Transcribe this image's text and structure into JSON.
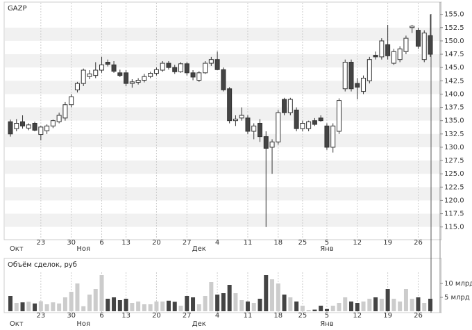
{
  "chart_data": {
    "type": "candlestick",
    "title": "GAZP",
    "categories": [
      null,
      null,
      null,
      null,
      null,
      "23",
      null,
      null,
      null,
      null,
      "30",
      null,
      null,
      null,
      null,
      "6",
      null,
      null,
      null,
      "13",
      null,
      null,
      null,
      null,
      "20",
      null,
      null,
      null,
      null,
      "27",
      null,
      null,
      null,
      null,
      "4",
      null,
      null,
      null,
      null,
      "11",
      null,
      null,
      null,
      null,
      "18",
      null,
      null,
      null,
      "25",
      null,
      null,
      null,
      "5",
      null,
      null,
      null,
      null,
      "12",
      null,
      null,
      null,
      null,
      "19",
      null,
      null,
      null,
      null,
      "26",
      null,
      null
    ],
    "months": [
      null,
      "Окт",
      null,
      null,
      null,
      null,
      null,
      null,
      null,
      null,
      null,
      null,
      "Ноя",
      null,
      null,
      null,
      null,
      null,
      null,
      null,
      null,
      null,
      null,
      null,
      null,
      null,
      null,
      null,
      null,
      null,
      null,
      "Дек",
      null,
      null,
      null,
      null,
      null,
      null,
      null,
      null,
      null,
      null,
      null,
      null,
      null,
      null,
      null,
      null,
      null,
      null,
      null,
      null,
      "Янв",
      null,
      null,
      null,
      null,
      null,
      null,
      null,
      null,
      null,
      null,
      null,
      null,
      null,
      null,
      null,
      null,
      null
    ],
    "open": [
      134.8,
      133.5,
      134.8,
      133.6,
      134.5,
      132.4,
      133.1,
      134,
      134.8,
      135.5,
      138,
      140.8,
      142,
      143.3,
      143.5,
      144.5,
      146,
      145.5,
      144,
      144,
      142,
      142.2,
      142.6,
      143.3,
      143.9,
      144.5,
      145.8,
      145,
      144.2,
      145.7,
      144,
      142.6,
      144,
      145.8,
      146.5,
      144.6,
      141,
      135,
      135.5,
      135.5,
      133,
      134.5,
      132,
      130,
      131,
      139,
      136.5,
      137,
      133.5,
      133.5,
      135,
      135.5,
      134,
      130,
      133,
      141,
      146,
      142,
      140.5,
      142.5,
      147.3,
      147,
      149.3,
      145.8,
      146.5,
      148,
      152.5,
      152,
      146.5,
      151
    ],
    "high": [
      135.2,
      135.3,
      136,
      134.5,
      134.8,
      134,
      134.3,
      135.2,
      136.5,
      138.5,
      140,
      142.3,
      144.8,
      144.5,
      146,
      147,
      146.5,
      146.2,
      144.6,
      144.5,
      142.8,
      143,
      143.8,
      144.2,
      145,
      146.2,
      146.2,
      145.5,
      146,
      146,
      144.5,
      144.3,
      146.2,
      147,
      148,
      145,
      141.3,
      136,
      137.5,
      136,
      134.5,
      135.3,
      133,
      131.5,
      137,
      139.3,
      139.3,
      137.5,
      135,
      135,
      135.5,
      136,
      134.5,
      134.5,
      139.2,
      146.5,
      146.5,
      143,
      143.5,
      147,
      148,
      150.5,
      153,
      148.5,
      149,
      151,
      153,
      152.5,
      152,
      155
    ],
    "low": [
      132,
      133,
      133.5,
      133.2,
      133,
      131.3,
      132.5,
      133.6,
      134.5,
      135,
      137.5,
      140.3,
      141.5,
      142.8,
      143,
      144,
      145.2,
      144,
      143.2,
      141.5,
      141.2,
      141.8,
      142.2,
      143,
      143.5,
      144.2,
      144.6,
      143.8,
      144,
      143.5,
      142.6,
      142.3,
      143.8,
      145.3,
      144.5,
      140.5,
      134.5,
      134,
      135,
      132.5,
      131.5,
      131,
      115,
      125,
      130.5,
      136,
      136,
      133,
      133,
      133,
      134,
      134.8,
      129.5,
      129,
      132.5,
      140.5,
      140.5,
      139,
      140,
      142,
      146.5,
      146.5,
      146.5,
      145.5,
      146,
      147.5,
      151.5,
      148.5,
      146,
      147
    ],
    "close": [
      132.5,
      134.5,
      134,
      134.2,
      133.2,
      133.8,
      134,
      135,
      136,
      138,
      139.5,
      142,
      144.5,
      143.8,
      144.5,
      145.5,
      145.6,
      144.3,
      143.5,
      142,
      142.3,
      142.6,
      143.3,
      143.9,
      144.6,
      145.8,
      145,
      144.2,
      145.7,
      144,
      143.2,
      144,
      145.8,
      146.5,
      144.6,
      140.8,
      135,
      135.3,
      136,
      133,
      134,
      132,
      129.8,
      131,
      136.5,
      136.5,
      139,
      133.5,
      134.5,
      134.8,
      134.3,
      135,
      130,
      134,
      138.8,
      146,
      141,
      141.3,
      143,
      146.5,
      147,
      150,
      147.2,
      148,
      148.5,
      150.5,
      152.8,
      149,
      151.5,
      147.5
    ],
    "up_color": "#ffffff",
    "down_color": "#444444",
    "ylim": [
      113,
      156
    ],
    "yticks": [
      {
        "value": 115,
        "label": "115.0"
      },
      {
        "value": 117.5,
        "label": "117.5"
      },
      {
        "value": 120,
        "label": "120.0"
      },
      {
        "value": 122.5,
        "label": "122.5"
      },
      {
        "value": 125,
        "label": "125.0"
      },
      {
        "value": 127.5,
        "label": "127.5"
      },
      {
        "value": 130,
        "label": "130.0"
      },
      {
        "value": 132.5,
        "label": "132.5"
      },
      {
        "value": 135,
        "label": "135.0"
      },
      {
        "value": 137.5,
        "label": "137.5"
      },
      {
        "value": 140,
        "label": "140.0"
      },
      {
        "value": 142.5,
        "label": "142.5"
      },
      {
        "value": 145,
        "label": "145.0"
      },
      {
        "value": 147.5,
        "label": "147.5"
      },
      {
        "value": 150,
        "label": "150.0"
      },
      {
        "value": 152.5,
        "label": "152.5"
      },
      {
        "value": 155,
        "label": "155.0"
      }
    ],
    "grid": true,
    "volume": {
      "title": "Объём сделок, руб",
      "values": [
        5.5,
        3,
        3.2,
        3.4,
        2.8,
        3.6,
        2.5,
        3.2,
        2.8,
        5,
        7,
        10,
        1.8,
        6,
        8,
        13,
        4.5,
        5,
        4,
        4.5,
        3,
        3.5,
        2.5,
        2.5,
        3.5,
        3.5,
        3.8,
        3.4,
        2,
        5.5,
        5,
        2.5,
        5.5,
        10.5,
        6,
        6.5,
        9.5,
        6.5,
        4,
        3.5,
        3,
        4.5,
        13,
        11.5,
        10,
        6,
        5,
        3.5,
        2,
        0.5,
        0.6,
        2,
        0.8,
        2,
        3,
        5,
        3.5,
        3,
        3.5,
        4.5,
        5,
        4.5,
        8,
        4.5,
        3.5,
        8,
        4.5,
        5,
        3,
        4.5
      ],
      "up_color": "#cccccc",
      "down_color": "#444444",
      "ylim": [
        0,
        14.5
      ],
      "yticks": [
        {
          "value": 5,
          "label": "5 млрд"
        },
        {
          "value": 10,
          "label": "10 млрд"
        }
      ]
    }
  }
}
